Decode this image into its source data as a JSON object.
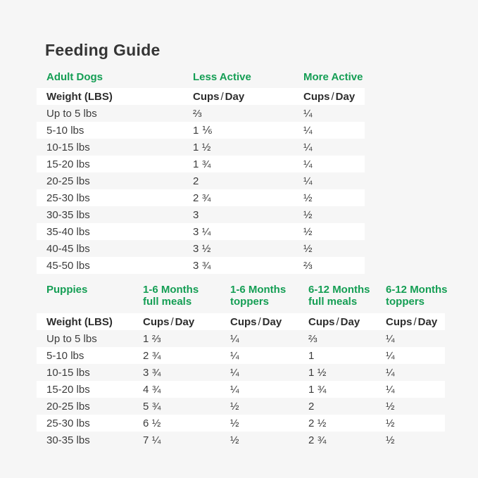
{
  "title": "Feeding Guide",
  "theme": {
    "green": "#149e54",
    "bg": "#f6f6f6",
    "row-white": "#ffffff",
    "text": "#3c3c3c",
    "heading": "#2d2d2d"
  },
  "weight_header": "Weight (LBS)",
  "cups_day": {
    "cups": "Cups",
    "sep": "/",
    "day": "Day"
  },
  "adult": {
    "section_label": "Adult Dogs",
    "col1": "Less Active",
    "col2": "More Active",
    "rows": [
      {
        "weight": "Up to 5 lbs",
        "less": "⅔",
        "more": "¼"
      },
      {
        "weight": "5-10 lbs",
        "less": "1 ⅙",
        "more": "¼"
      },
      {
        "weight": "10-15 lbs",
        "less": "1 ½",
        "more": "¼"
      },
      {
        "weight": "15-20 lbs",
        "less": "1 ¾",
        "more": "¼"
      },
      {
        "weight": "20-25 lbs",
        "less": "2",
        "more": "¼"
      },
      {
        "weight": "25-30 lbs",
        "less": "2 ¾",
        "more": "½"
      },
      {
        "weight": "30-35 lbs",
        "less": "3",
        "more": "½"
      },
      {
        "weight": "35-40 lbs",
        "less": "3 ¼",
        "more": "½"
      },
      {
        "weight": "40-45 lbs",
        "less": "3 ½",
        "more": "½"
      },
      {
        "weight": "45-50 lbs",
        "less": "3 ¾",
        "more": "⅔"
      }
    ]
  },
  "puppies": {
    "section_label": "Puppies",
    "col1": {
      "line1": "1-6 Months",
      "line2": "full meals"
    },
    "col2": {
      "line1": "1-6 Months",
      "line2": "toppers"
    },
    "col3": {
      "line1": "6-12 Months",
      "line2": "full meals"
    },
    "col4": {
      "line1": "6-12 Months",
      "line2": "toppers"
    },
    "rows": [
      {
        "weight": "Up to 5 lbs",
        "c1": "1 ⅔",
        "c2": "¼",
        "c3": "⅔",
        "c4": "¼"
      },
      {
        "weight": "5-10 lbs",
        "c1": "2 ¾",
        "c2": "¼",
        "c3": "1",
        "c4": "¼"
      },
      {
        "weight": "10-15 lbs",
        "c1": "3 ¾",
        "c2": "¼",
        "c3": "1 ½",
        "c4": "¼"
      },
      {
        "weight": "15-20 lbs",
        "c1": "4 ¾",
        "c2": "¼",
        "c3": "1 ¾",
        "c4": "¼"
      },
      {
        "weight": "20-25 lbs",
        "c1": "5 ¾",
        "c2": "½",
        "c3": "2",
        "c4": "½"
      },
      {
        "weight": "25-30 lbs",
        "c1": "6 ½",
        "c2": "½",
        "c3": "2 ½",
        "c4": "½"
      },
      {
        "weight": "30-35 lbs",
        "c1": "7 ¼",
        "c2": "½",
        "c3": "2 ¾",
        "c4": "½"
      }
    ]
  }
}
